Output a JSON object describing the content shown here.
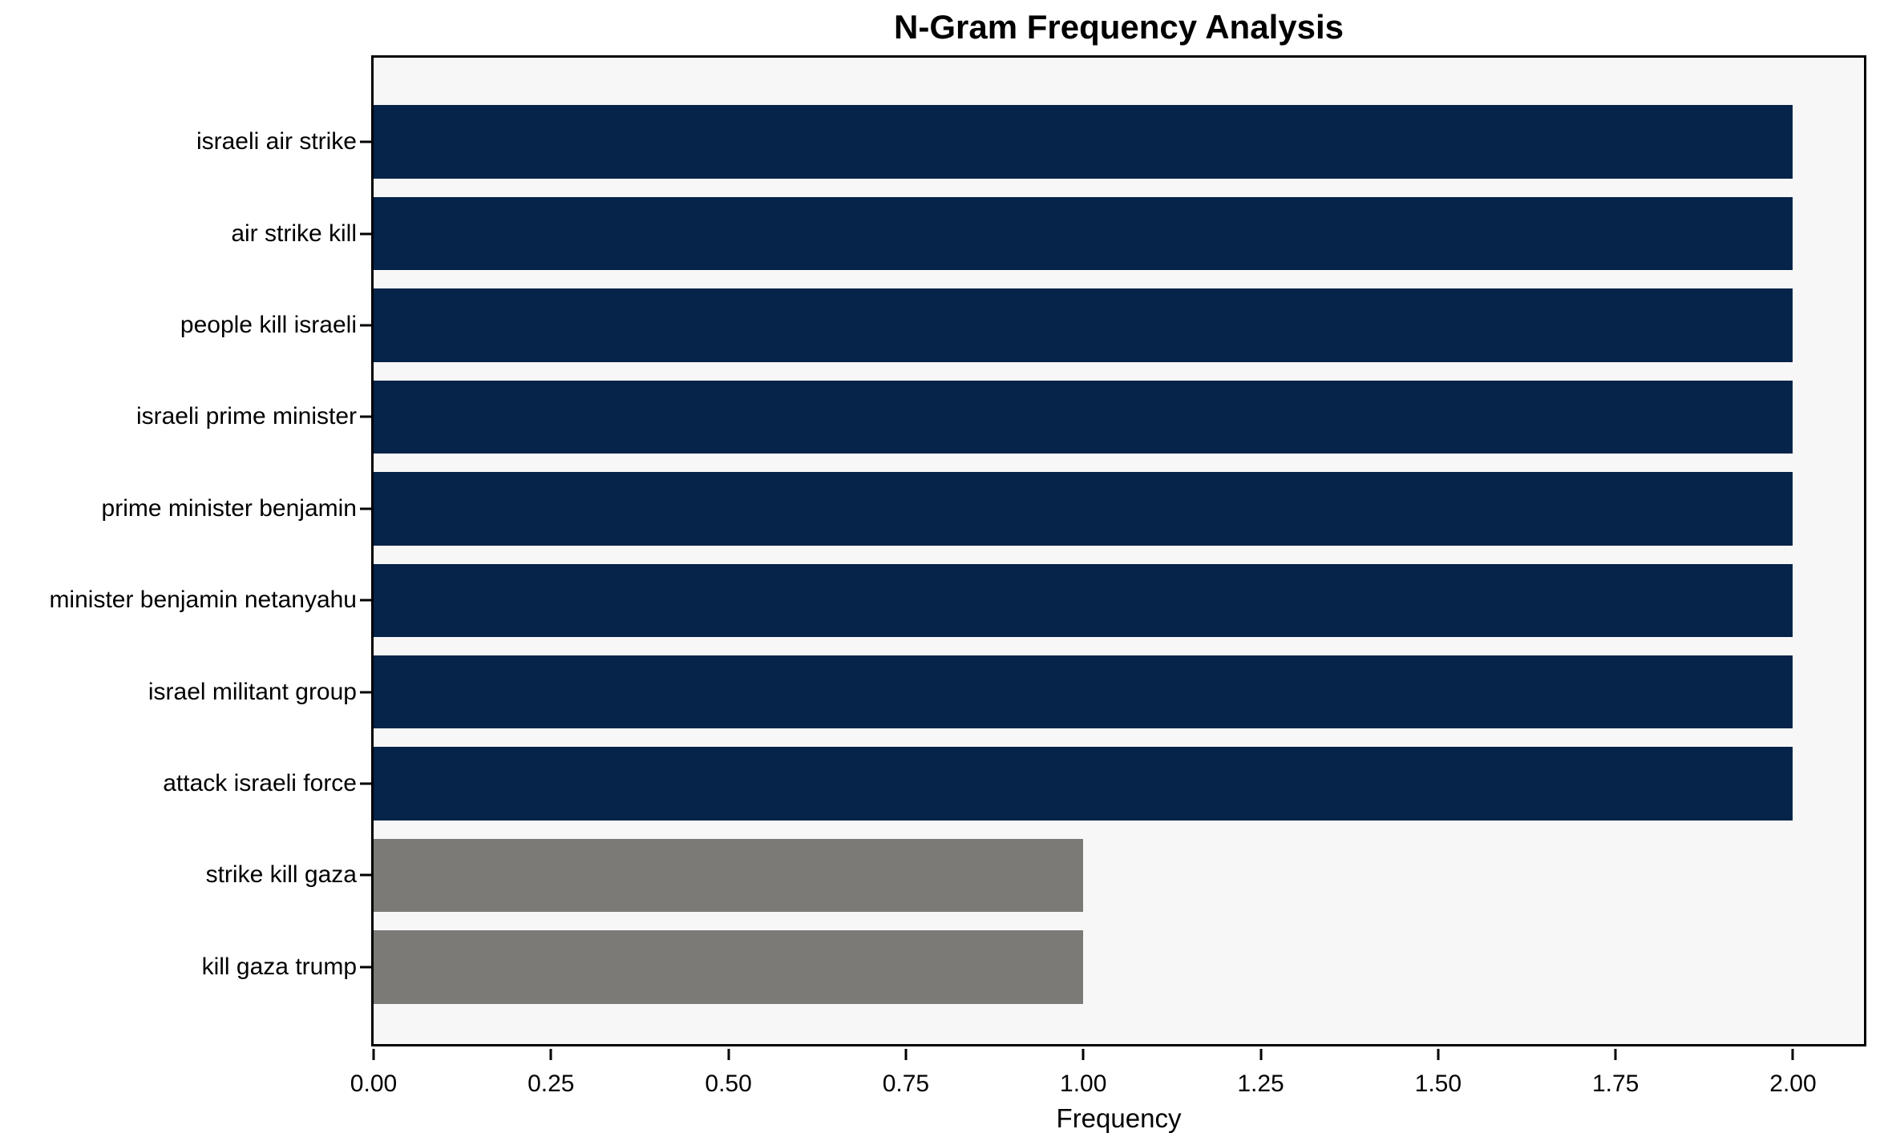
{
  "chart_data": {
    "type": "bar",
    "orientation": "horizontal",
    "title": "N-Gram Frequency Analysis",
    "xlabel": "Frequency",
    "ylabel": "",
    "categories": [
      "israeli air strike",
      "air strike kill",
      "people kill israeli",
      "israeli prime minister",
      "prime minister benjamin",
      "minister benjamin netanyahu",
      "israel militant group",
      "attack israeli force",
      "strike kill gaza",
      "kill gaza trump"
    ],
    "values": [
      2,
      2,
      2,
      2,
      2,
      2,
      2,
      2,
      1,
      1
    ],
    "bar_colors": [
      "#062349",
      "#062349",
      "#062349",
      "#062349",
      "#062349",
      "#062349",
      "#062349",
      "#062349",
      "#7b7a76",
      "#7b7a76"
    ],
    "xlim": [
      0,
      2.1
    ],
    "xticks": [
      0,
      0.25,
      0.5,
      0.75,
      1,
      1.25,
      1.5,
      1.75,
      2
    ],
    "xtick_labels": [
      "0.00",
      "0.25",
      "0.50",
      "0.75",
      "1.00",
      "1.25",
      "1.50",
      "1.75",
      "2.00"
    ],
    "grid": false,
    "legend": null,
    "colors": {
      "highlight_bar": "#062349",
      "muted_bar": "#7b7a76",
      "plot_bg": "#f7f7f7",
      "spine": "#000000",
      "text": "#000000"
    }
  }
}
